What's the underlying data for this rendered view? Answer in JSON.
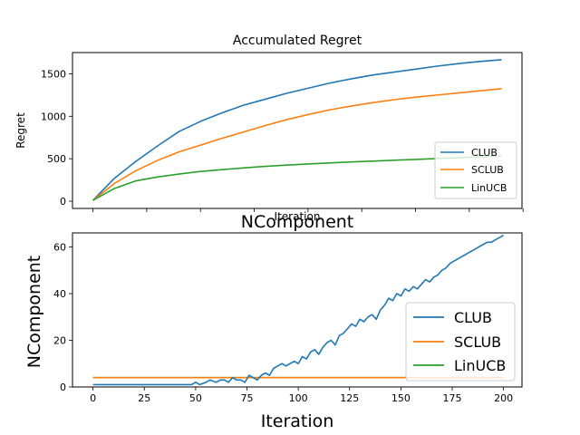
{
  "chart_data": [
    {
      "type": "line",
      "title": "Accumulated Regret",
      "xlabel": "Iteration",
      "ylabel": "Regret",
      "xlim": [
        -9.5,
        199.5
      ],
      "ylim": [
        -85,
        1750
      ],
      "xticks": [
        0,
        25,
        50,
        75,
        100,
        125,
        150,
        175,
        200
      ],
      "xtick_labels_visible": false,
      "yticks": [
        0,
        500,
        1000,
        1500
      ],
      "ytick_labels": [
        "0",
        "500",
        "1000",
        "1500"
      ],
      "legend_position": "lower-right",
      "series": [
        {
          "name": "CLUB",
          "color": "#1f77b4",
          "x": [
            0,
            10,
            20,
            30,
            40,
            50,
            60,
            70,
            80,
            90,
            100,
            110,
            120,
            130,
            140,
            150,
            160,
            170,
            180,
            190
          ],
          "y": [
            10,
            270,
            470,
            650,
            820,
            940,
            1040,
            1130,
            1200,
            1270,
            1330,
            1390,
            1440,
            1485,
            1520,
            1555,
            1590,
            1620,
            1645,
            1665
          ]
        },
        {
          "name": "SCLUB",
          "color": "#ff7f0e",
          "x": [
            0,
            10,
            20,
            30,
            40,
            50,
            60,
            70,
            80,
            90,
            100,
            110,
            120,
            130,
            140,
            150,
            160,
            170,
            180,
            190
          ],
          "y": [
            10,
            210,
            360,
            480,
            580,
            660,
            740,
            815,
            890,
            960,
            1020,
            1075,
            1120,
            1160,
            1195,
            1225,
            1250,
            1275,
            1300,
            1325
          ]
        },
        {
          "name": "LinUCB",
          "color": "#2ca02c",
          "x": [
            0,
            10,
            20,
            30,
            40,
            50,
            60,
            70,
            80,
            90,
            100,
            110,
            120,
            130,
            140,
            150,
            160,
            170,
            180,
            190
          ],
          "y": [
            10,
            150,
            240,
            285,
            320,
            350,
            372,
            392,
            410,
            425,
            438,
            450,
            462,
            472,
            482,
            492,
            502,
            512,
            522,
            532
          ]
        }
      ]
    },
    {
      "type": "line",
      "title": "NComponent",
      "xlabel": "Iteration",
      "ylabel": "NComponent",
      "xlim": [
        -10,
        209
      ],
      "ylim": [
        0,
        66
      ],
      "xticks": [
        0,
        25,
        50,
        75,
        100,
        125,
        150,
        175,
        200
      ],
      "xtick_labels": [
        "0",
        "25",
        "50",
        "75",
        "100",
        "125",
        "150",
        "175",
        "200"
      ],
      "yticks": [
        0,
        20,
        40,
        60
      ],
      "ytick_labels": [
        "0",
        "20",
        "40",
        "60"
      ],
      "legend_position": "lower-right",
      "series": [
        {
          "name": "CLUB",
          "color": "#1f77b4",
          "x": [
            0,
            48,
            50,
            52,
            55,
            57,
            60,
            62,
            64,
            66,
            68,
            70,
            72,
            74,
            76,
            78,
            80,
            82,
            84,
            86,
            88,
            90,
            92,
            94,
            96,
            98,
            100,
            102,
            104,
            106,
            108,
            110,
            112,
            114,
            116,
            118,
            120,
            122,
            124,
            126,
            128,
            130,
            132,
            134,
            136,
            138,
            140,
            142,
            144,
            146,
            148,
            150,
            152,
            154,
            156,
            158,
            160,
            162,
            164,
            166,
            168,
            170,
            172,
            174,
            176,
            178,
            180,
            182,
            184,
            186,
            188,
            190,
            192,
            194,
            196,
            198,
            200
          ],
          "y": [
            1,
            1,
            2,
            1,
            2,
            3,
            2,
            3,
            3,
            2,
            4,
            3,
            3,
            2,
            5,
            4,
            3,
            5,
            6,
            5,
            8,
            9,
            10,
            9,
            10,
            11,
            10,
            13,
            12,
            15,
            16,
            14,
            17,
            19,
            20,
            18,
            22,
            23,
            25,
            27,
            26,
            29,
            28,
            30,
            31,
            29,
            33,
            35,
            38,
            37,
            40,
            39,
            42,
            41,
            43,
            42,
            44,
            46,
            45,
            47,
            48,
            50,
            51,
            53,
            54,
            55,
            56,
            57,
            58,
            59,
            60,
            61,
            62,
            62,
            63,
            64,
            65
          ]
        },
        {
          "name": "SCLUB",
          "color": "#ff7f0e",
          "x": [
            0,
            200
          ],
          "y": [
            4,
            4
          ]
        },
        {
          "name": "LinUCB",
          "color": "#2ca02c",
          "x": [
            0,
            200
          ],
          "y": [
            4,
            4
          ]
        }
      ]
    }
  ]
}
